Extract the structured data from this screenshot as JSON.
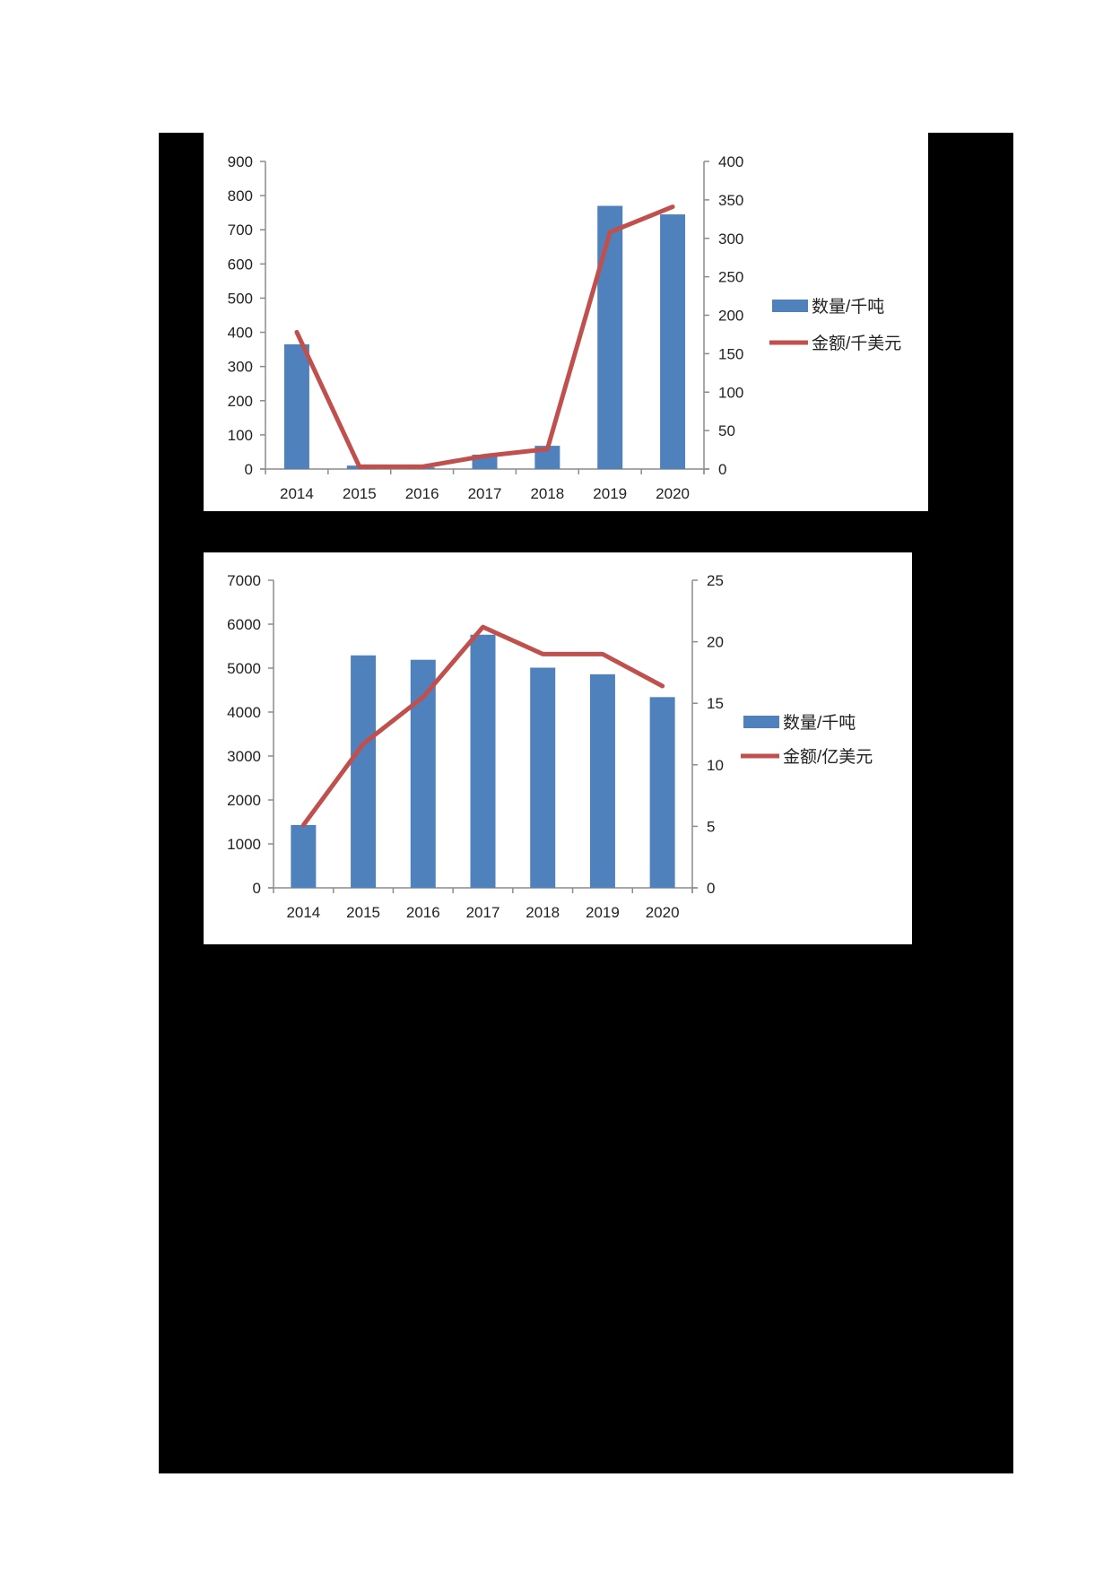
{
  "colors": {
    "bar": "#4f81bd",
    "line": "#c0504d",
    "axis": "#8c8c8c",
    "frame": "#000000"
  },
  "chart_data": [
    {
      "type": "bar+line",
      "title": "",
      "categories": [
        "2014",
        "2015",
        "2016",
        "2017",
        "2018",
        "2019",
        "2020"
      ],
      "series": [
        {
          "name": "数量/千吨",
          "type": "bar",
          "axis": "left",
          "values": [
            365,
            10,
            5,
            42,
            68,
            770,
            745
          ]
        },
        {
          "name": "金额/千美元",
          "type": "line",
          "axis": "right",
          "values": [
            178,
            3,
            3,
            17,
            26,
            308,
            341
          ]
        }
      ],
      "left_axis": {
        "ylim": [
          0,
          900
        ],
        "ticks": [
          "0",
          "100",
          "200",
          "300",
          "400",
          "500",
          "600",
          "700",
          "800",
          "900"
        ]
      },
      "right_axis": {
        "ylim": [
          0,
          400
        ],
        "ticks": [
          "0",
          "50",
          "100",
          "150",
          "200",
          "250",
          "300",
          "350",
          "400"
        ]
      },
      "xlabel": "",
      "ylabel": "",
      "grid": false,
      "legend_position": "right"
    },
    {
      "type": "bar+line",
      "title": "",
      "categories": [
        "2014",
        "2015",
        "2016",
        "2017",
        "2018",
        "2019",
        "2020"
      ],
      "series": [
        {
          "name": "数量/千吨",
          "type": "bar",
          "axis": "left",
          "values": [
            1430,
            5290,
            5190,
            5760,
            5010,
            4860,
            4340
          ]
        },
        {
          "name": "金额/亿美元",
          "type": "line",
          "axis": "right",
          "values": [
            5.1,
            11.7,
            15.5,
            21.2,
            19.0,
            19.0,
            16.4
          ]
        }
      ],
      "left_axis": {
        "ylim": [
          0,
          7000
        ],
        "ticks": [
          "0",
          "1000",
          "2000",
          "3000",
          "4000",
          "5000",
          "6000",
          "7000"
        ]
      },
      "right_axis": {
        "ylim": [
          0,
          25
        ],
        "ticks": [
          "0",
          "5",
          "10",
          "15",
          "20",
          "25"
        ]
      },
      "xlabel": "",
      "ylabel": "",
      "grid": false,
      "legend_position": "right"
    }
  ]
}
